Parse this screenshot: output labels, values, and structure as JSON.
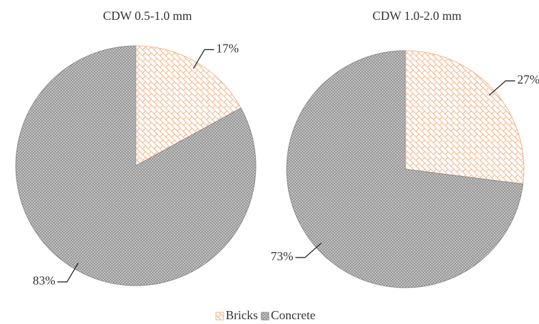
{
  "chart_data": [
    {
      "type": "pie",
      "title": "CDW 0.5-1.0 mm",
      "categories": [
        "Bricks",
        "Concrete"
      ],
      "values": [
        17,
        83
      ],
      "value_labels": [
        "17%",
        "83%"
      ],
      "colors": [
        "#f4b183",
        "#7f7f7f"
      ]
    },
    {
      "type": "pie",
      "title": "CDW 1.0-2.0 mm",
      "categories": [
        "Bricks",
        "Concrete"
      ],
      "values": [
        27,
        73
      ],
      "value_labels": [
        "27%",
        "73%"
      ],
      "colors": [
        "#f4b183",
        "#7f7f7f"
      ]
    }
  ]
}
